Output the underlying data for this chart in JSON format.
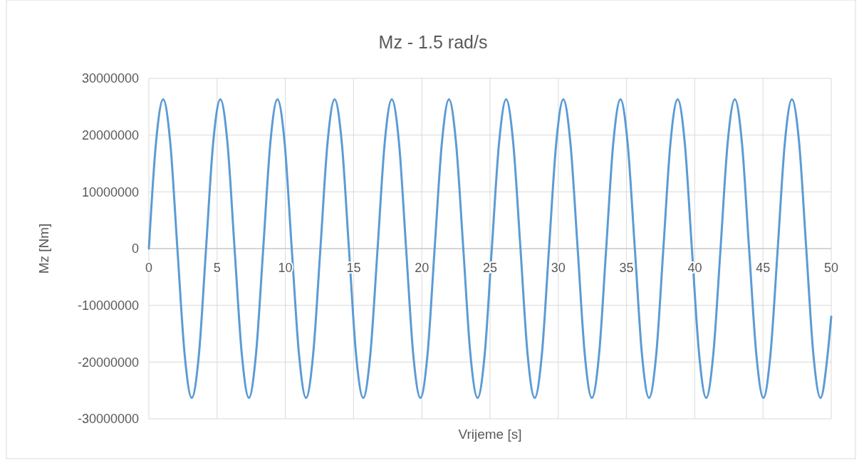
{
  "chart_data": {
    "type": "line",
    "title": "Mz - 1.5 rad/s",
    "xlabel": "Vrijeme [s]",
    "ylabel": "Mz [Nm]",
    "x": [
      0,
      0.52,
      1.05,
      1.57,
      2.09,
      2.62,
      3.14,
      3.67,
      4.19,
      4.71,
      5.24,
      5.76,
      6.28,
      6.81,
      7.33,
      7.85,
      8.38,
      8.9,
      9.42,
      9.95,
      10.47,
      11,
      11.52,
      12.04,
      12.57,
      13.09,
      13.61,
      14.14,
      14.66,
      15.18,
      15.71,
      16.23,
      16.76,
      17.28,
      17.8,
      18.33,
      18.85,
      19.37,
      19.9,
      20.42,
      20.94,
      21.47,
      21.99,
      22.51,
      23.04,
      23.56,
      24.09,
      24.61,
      25.13,
      25.66,
      26.18,
      26.7,
      27.23,
      27.75,
      28.27,
      28.8,
      29.32,
      29.85,
      30.37,
      30.89,
      31.42,
      31.94,
      32.46,
      32.99,
      33.51,
      34.03,
      34.56,
      35.08,
      35.61,
      36.13,
      36.65,
      37.18,
      37.7,
      38.22,
      38.75,
      39.27,
      39.79,
      40.32,
      40.84,
      41.36,
      41.89,
      42.41,
      42.94,
      43.46,
      43.98,
      44.51,
      45.03,
      45.55,
      46.08,
      46.6,
      47.12,
      47.65,
      48.17,
      48.69,
      49.22,
      49.74,
      50
    ],
    "series": [
      {
        "color": "#5b9bd5",
        "values": [
          0,
          18600000,
          26300000,
          18600000,
          0,
          -18600000,
          -26300000,
          -18600000,
          0,
          18600000,
          26300000,
          18600000,
          0,
          -18600000,
          -26300000,
          -18600000,
          0,
          18600000,
          26300000,
          18600000,
          0,
          -18600000,
          -26300000,
          -18600000,
          0,
          18600000,
          26300000,
          18600000,
          0,
          -18600000,
          -26300000,
          -18600000,
          0,
          18600000,
          26300000,
          18600000,
          0,
          -18600000,
          -26300000,
          -18600000,
          0,
          18600000,
          26300000,
          18600000,
          0,
          -18600000,
          -26300000,
          -18600000,
          0,
          18600000,
          26300000,
          18600000,
          0,
          -18600000,
          -26300000,
          -18600000,
          0,
          18600000,
          26300000,
          18600000,
          0,
          -18600000,
          -26300000,
          -18600000,
          0,
          18600000,
          26300000,
          18600000,
          0,
          -18600000,
          -26300000,
          -18600000,
          0,
          18600000,
          26300000,
          18600000,
          0,
          -18600000,
          -26300000,
          -18600000,
          0,
          18600000,
          26300000,
          18600000,
          0,
          -18600000,
          -26300000,
          -18600000,
          0,
          18600000,
          26300000,
          18600000,
          0,
          -18600000,
          -26300000,
          -18600000,
          -12000000
        ]
      }
    ],
    "xlim": [
      0,
      50
    ],
    "xticks": [
      0,
      5,
      10,
      15,
      20,
      25,
      30,
      35,
      40,
      45,
      50
    ],
    "ylim": [
      -30000000,
      30000000
    ],
    "yticks": [
      -30000000,
      -20000000,
      -10000000,
      0,
      10000000,
      20000000,
      30000000
    ],
    "grid": true,
    "marker": "none",
    "line_style": "solid"
  }
}
